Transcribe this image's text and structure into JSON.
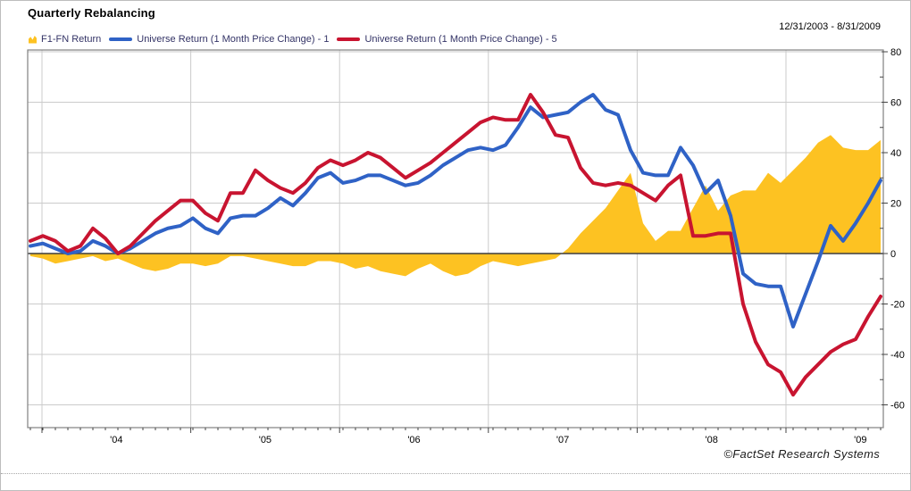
{
  "window": {
    "title": "Quarterly Rebalancing",
    "date_range": "12/31/2003 - 8/31/2009",
    "footer_credit": "©FactSet Research Systems"
  },
  "legend": {
    "items": [
      {
        "label": "F1-FN Return",
        "type": "area",
        "color": "#FDC222"
      },
      {
        "label": "Universe Return (1 Month Price Change) - 1",
        "type": "line",
        "color": "#2F62C6"
      },
      {
        "label": "Universe Return (1 Month Price Change) - 5",
        "type": "line",
        "color": "#C81430"
      }
    ]
  },
  "colors": {
    "background": "#ffffff",
    "gridline": "#cbcbcb",
    "frame": "#808080",
    "zero_line": "#3c3c3c",
    "tick": "#444444",
    "axis_text": "#000000",
    "legend_text": "#333366"
  },
  "chart_data": {
    "type": "area",
    "subtype": "area + 2 line series, monthly points",
    "title": "Quarterly Rebalancing",
    "date_range": "12/31/2003 - 8/31/2009",
    "x_unit": "month",
    "x_start": "2003-12",
    "x_end": "2009-08",
    "x_tick_labels": [
      "'04",
      "'05",
      "'06",
      "'07",
      "'08",
      "'09"
    ],
    "y_ticks": [
      80,
      60,
      40,
      20,
      0,
      -20,
      -40,
      -60
    ],
    "ylim": [
      -69,
      80
    ],
    "grid": true,
    "legend_position": "top-left",
    "ylabel": "",
    "xlabel": "",
    "series": [
      {
        "name": "F1-FN Return",
        "type": "area",
        "color": "#FDC222",
        "values": [
          -1,
          -2,
          -4,
          -3,
          -2,
          -1,
          -3,
          -2,
          -4,
          -6,
          -7,
          -6,
          -4,
          -4,
          -5,
          -4,
          -1,
          -1,
          -2,
          -3,
          -4,
          -5,
          -5,
          -3,
          -3,
          -4,
          -6,
          -5,
          -7,
          -8,
          -9,
          -6,
          -4,
          -7,
          -9,
          -8,
          -5,
          -3,
          -4,
          -5,
          -4,
          -3,
          -2,
          2,
          8,
          13,
          18,
          25,
          32,
          12,
          5,
          9,
          9,
          18,
          27,
          17,
          23,
          25,
          25,
          32,
          28,
          33,
          38,
          44,
          47,
          42,
          41,
          41,
          45
        ]
      },
      {
        "name": "Universe Return (1 Month Price Change) - 1",
        "type": "line",
        "color": "#2F62C6",
        "values": [
          3,
          4,
          2,
          0,
          1,
          5,
          3,
          0,
          2,
          5,
          8,
          10,
          11,
          14,
          10,
          8,
          14,
          15,
          15,
          18,
          22,
          19,
          24,
          30,
          32,
          28,
          29,
          31,
          31,
          29,
          27,
          28,
          31,
          35,
          38,
          41,
          42,
          41,
          43,
          50,
          58,
          54,
          55,
          56,
          60,
          63,
          57,
          55,
          41,
          32,
          31,
          31,
          42,
          35,
          24,
          29,
          15,
          -8,
          -12,
          -13,
          -13,
          -29,
          -16,
          -3,
          11,
          5,
          12,
          20,
          29
        ]
      },
      {
        "name": "Universe Return (1 Month Price Change) - 5",
        "type": "line",
        "color": "#C81430",
        "values": [
          5,
          7,
          5,
          1,
          3,
          10,
          6,
          0,
          3,
          8,
          13,
          17,
          21,
          21,
          16,
          13,
          24,
          24,
          33,
          29,
          26,
          24,
          28,
          34,
          37,
          35,
          37,
          40,
          38,
          34,
          30,
          33,
          36,
          40,
          44,
          48,
          52,
          54,
          53,
          53,
          63,
          56,
          47,
          46,
          34,
          28,
          27,
          28,
          27,
          24,
          21,
          27,
          31,
          7,
          7,
          8,
          8,
          -20,
          -35,
          -44,
          -47,
          -56,
          -49,
          -44,
          -39,
          -36,
          -34,
          -25,
          -17
        ]
      }
    ]
  }
}
